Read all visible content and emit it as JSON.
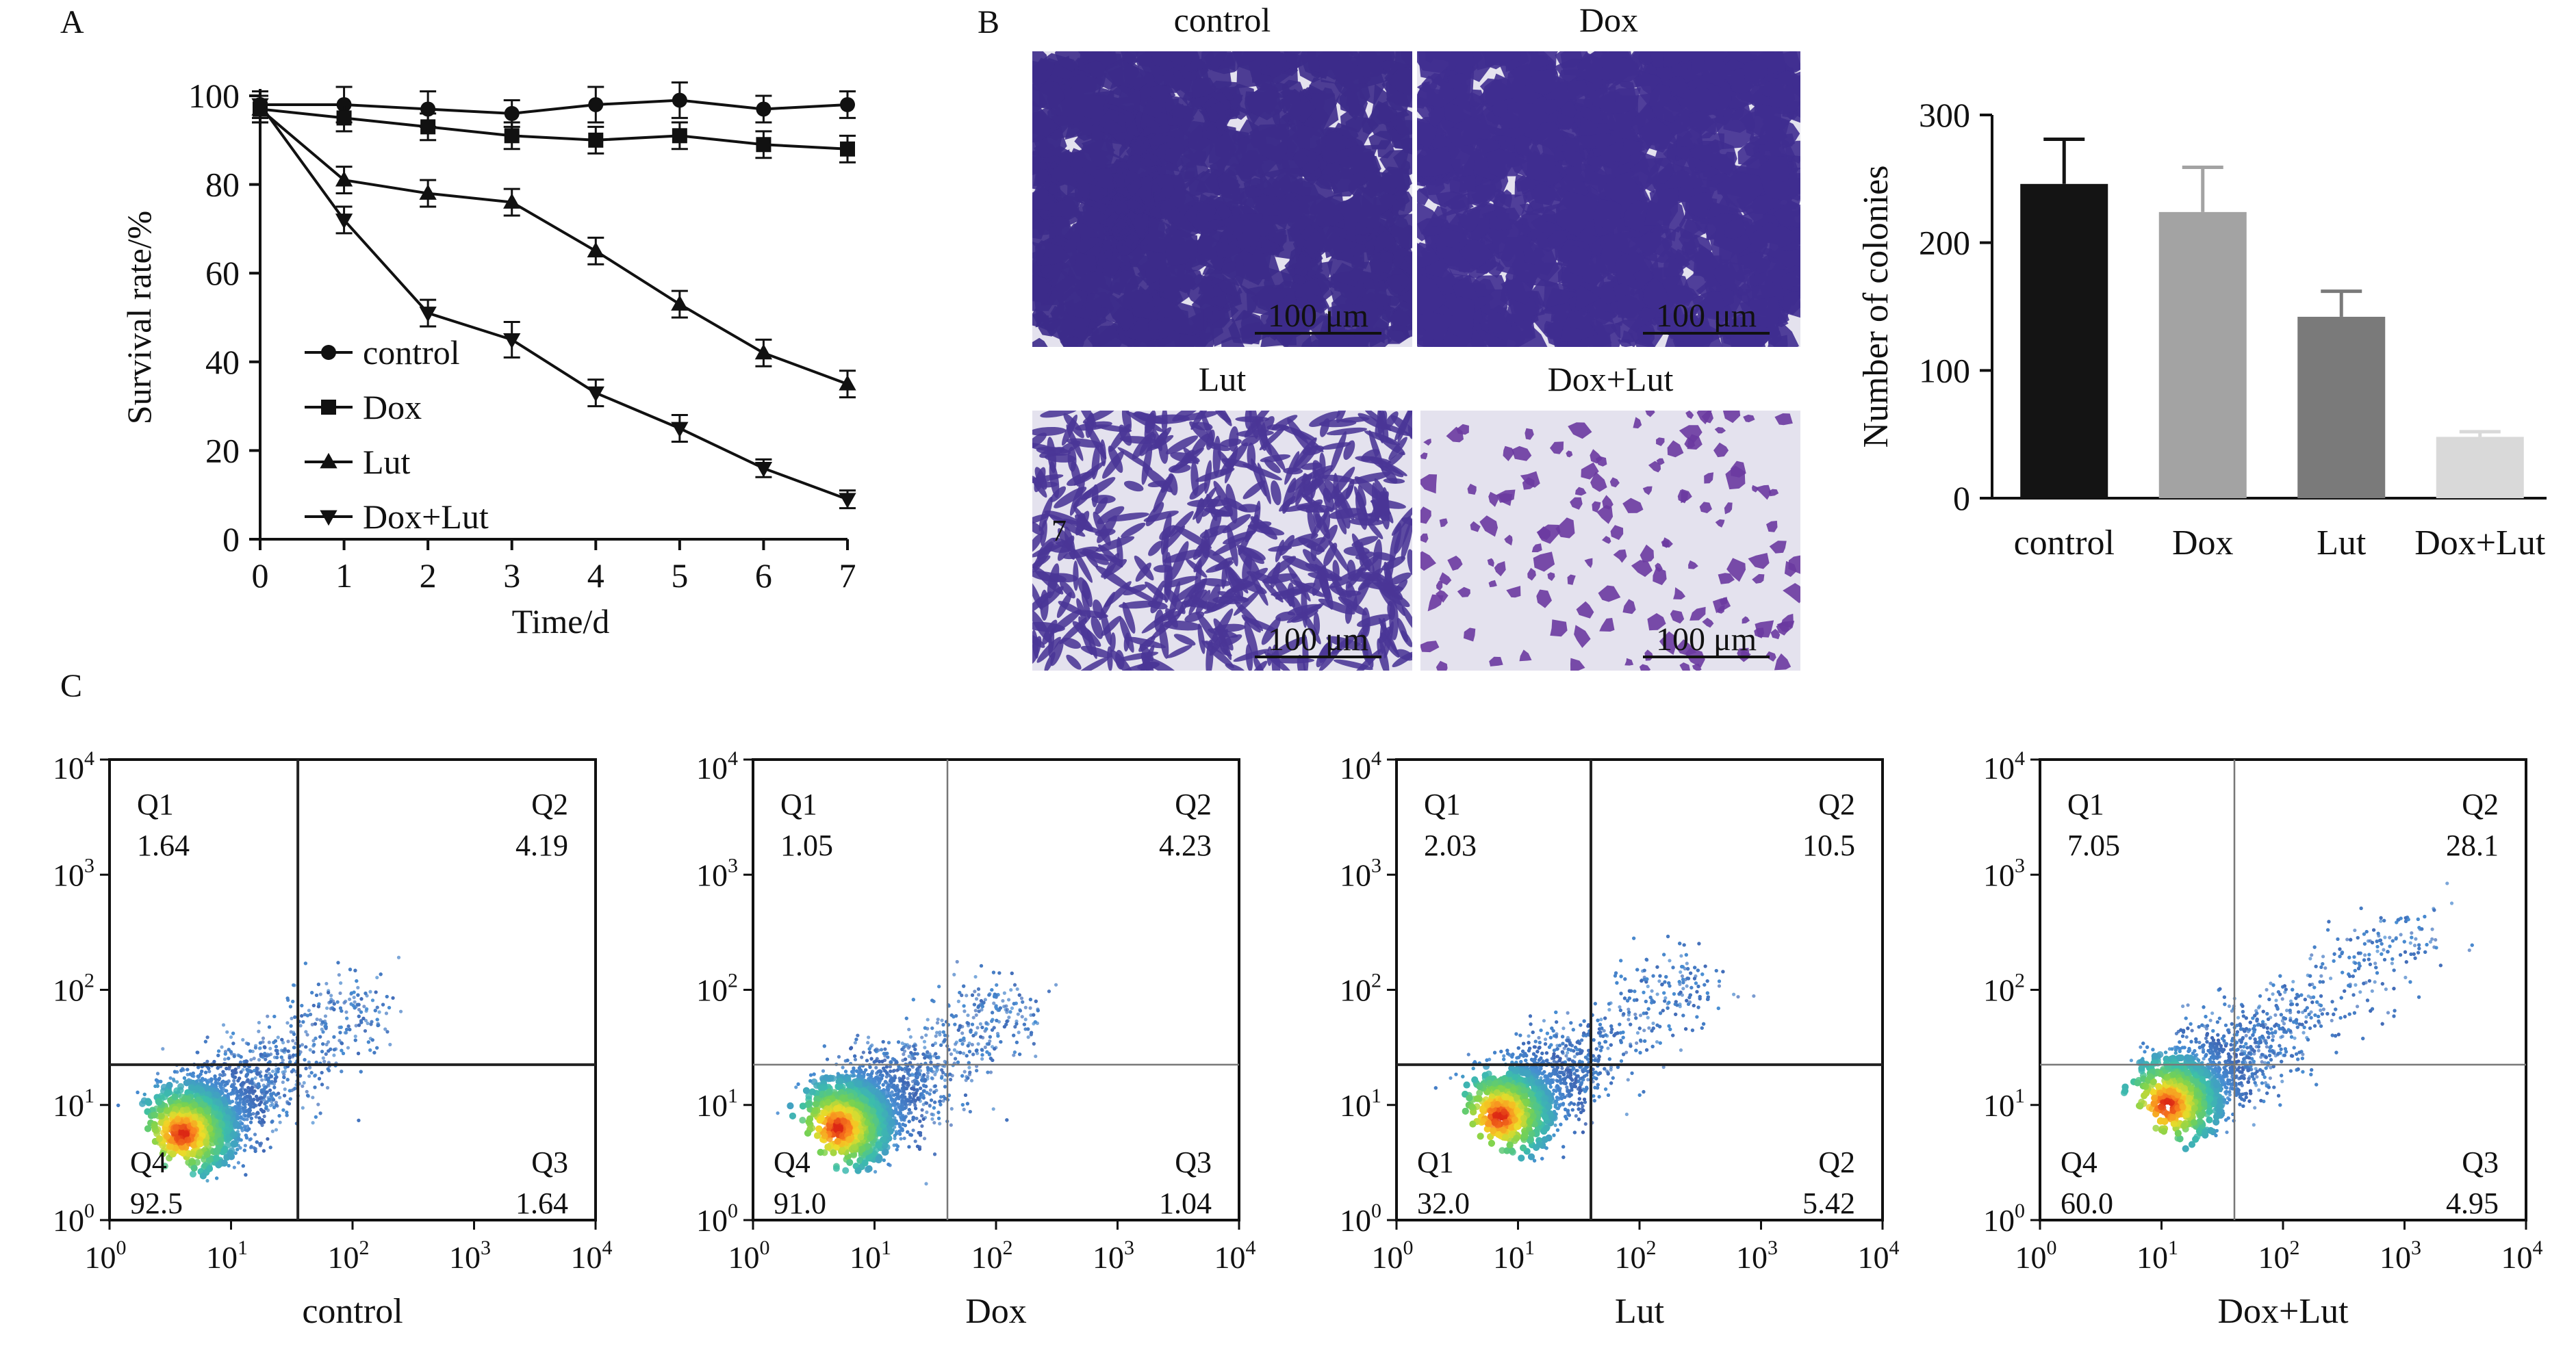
{
  "panels": {
    "A": "A",
    "B": "B",
    "C": "C"
  },
  "micrographs": [
    {
      "label": "control",
      "scale_text": "100 μm",
      "density": 0.62,
      "color": "#3c2b8a",
      "shape": "blob"
    },
    {
      "label": "Dox",
      "scale_text": "100 μm",
      "density": 0.66,
      "color": "#3f2e90",
      "shape": "blob"
    },
    {
      "label": "Lut",
      "scale_text": "100 μm",
      "density": 0.36,
      "color": "#4a3596",
      "shape": "sliver",
      "mark": "7"
    },
    {
      "label": "Dox+Lut",
      "scale_text": "100 μm",
      "density": 0.08,
      "color": "#6a3aa0",
      "shape": "blob"
    }
  ],
  "chart_data": [
    {
      "type": "line",
      "panel": "A",
      "xlabel": "Time/d",
      "ylabel": "Survival rate/%",
      "xlim": [
        0,
        7
      ],
      "ylim": [
        0,
        100
      ],
      "x_ticks": [
        0,
        1,
        2,
        3,
        4,
        5,
        6,
        7
      ],
      "y_ticks": [
        0,
        20,
        40,
        60,
        80,
        100
      ],
      "x": [
        0,
        1,
        2,
        3,
        4,
        5,
        6,
        7
      ],
      "legend_position": "bottom-left",
      "series": [
        {
          "name": "control",
          "marker": "circle",
          "values": [
            98,
            98,
            97,
            96,
            98,
            99,
            97,
            98
          ],
          "errors": [
            3,
            4,
            4,
            3,
            4,
            4,
            3,
            3
          ]
        },
        {
          "name": "Dox",
          "marker": "square",
          "values": [
            97,
            95,
            93,
            91,
            90,
            91,
            89,
            88
          ],
          "errors": [
            3,
            3,
            3,
            3,
            3,
            3,
            3,
            3
          ]
        },
        {
          "name": "Lut",
          "marker": "triangle-up",
          "values": [
            97,
            81,
            78,
            76,
            65,
            53,
            42,
            35
          ],
          "errors": [
            3,
            3,
            3,
            3,
            3,
            3,
            3,
            3
          ]
        },
        {
          "name": "Dox+Lut",
          "marker": "triangle-down",
          "values": [
            98,
            72,
            51,
            45,
            33,
            25,
            16,
            9
          ],
          "errors": [
            3,
            3,
            3,
            4,
            3,
            3,
            2,
            2
          ]
        }
      ]
    },
    {
      "type": "bar",
      "panel": "B",
      "ylabel": "Number of colonies",
      "ylim": [
        0,
        300
      ],
      "y_ticks": [
        0,
        100,
        200,
        300
      ],
      "categories": [
        "control",
        "Dox",
        "Lut",
        "Dox+Lut"
      ],
      "values": [
        246,
        224,
        142,
        48
      ],
      "errors": [
        35,
        35,
        20,
        4
      ],
      "colors": [
        "#141414",
        "#a3a3a3",
        "#7a7a7a",
        "#d9d9d9"
      ]
    },
    {
      "type": "scatter",
      "panel": "C",
      "title": "control",
      "log_axes": true,
      "tick_base": "10",
      "tick_exponents": [
        "0",
        "1",
        "2",
        "3",
        "4"
      ],
      "quadrants": [
        {
          "name": "Q1",
          "value": "1.64",
          "corner": "top-left"
        },
        {
          "name": "Q2",
          "value": "4.19",
          "corner": "top-right"
        },
        {
          "name": "Q3",
          "value": "1.64",
          "corner": "bottom-right"
        },
        {
          "name": "Q4",
          "value": "92.5",
          "corner": "bottom-left"
        }
      ],
      "gate_x": 1.55,
      "gate_y": 1.35,
      "gate_style": "bold",
      "cloud_center": [
        0.6,
        0.75
      ],
      "cloud_spread": 0.75
    },
    {
      "type": "scatter",
      "panel": "C",
      "title": "Dox",
      "log_axes": true,
      "tick_base": "10",
      "tick_exponents": [
        "0",
        "1",
        "2",
        "3",
        "4"
      ],
      "quadrants": [
        {
          "name": "Q1",
          "value": "1.05",
          "corner": "top-left"
        },
        {
          "name": "Q2",
          "value": "4.23",
          "corner": "top-right"
        },
        {
          "name": "Q3",
          "value": "1.04",
          "corner": "bottom-right"
        },
        {
          "name": "Q4",
          "value": "91.0",
          "corner": "bottom-left"
        }
      ],
      "gate_x": 1.6,
      "gate_y": 1.35,
      "gate_style": "thin",
      "cloud_center": [
        0.7,
        0.8
      ],
      "cloud_spread": 0.7
    },
    {
      "type": "scatter",
      "panel": "C",
      "title": "Lut",
      "log_axes": true,
      "tick_base": "10",
      "tick_exponents": [
        "0",
        "1",
        "2",
        "3",
        "4"
      ],
      "quadrants": [
        {
          "name": "Q1",
          "value": "2.03",
          "corner": "top-left"
        },
        {
          "name": "Q2",
          "value": "10.5",
          "corner": "top-right"
        },
        {
          "name": "Q2",
          "value": "5.42",
          "corner": "bottom-right"
        },
        {
          "name": "Q1",
          "value": "32.0",
          "corner": "bottom-left"
        }
      ],
      "gate_x": 1.6,
      "gate_y": 1.35,
      "gate_style": "bold",
      "cloud_center": [
        0.85,
        0.9
      ],
      "cloud_spread": 0.8
    },
    {
      "type": "scatter",
      "panel": "C",
      "title": "Dox+Lut",
      "log_axes": true,
      "tick_base": "10",
      "tick_exponents": [
        "0",
        "1",
        "2",
        "3",
        "4"
      ],
      "quadrants": [
        {
          "name": "Q1",
          "value": "7.05",
          "corner": "top-left"
        },
        {
          "name": "Q2",
          "value": "28.1",
          "corner": "top-right"
        },
        {
          "name": "Q3",
          "value": "4.95",
          "corner": "bottom-right"
        },
        {
          "name": "Q4",
          "value": "60.0",
          "corner": "bottom-left"
        }
      ],
      "gate_x": 1.6,
      "gate_y": 1.35,
      "gate_style": "thin",
      "cloud_center": [
        1.05,
        1.0
      ],
      "cloud_spread": 1.0
    }
  ]
}
